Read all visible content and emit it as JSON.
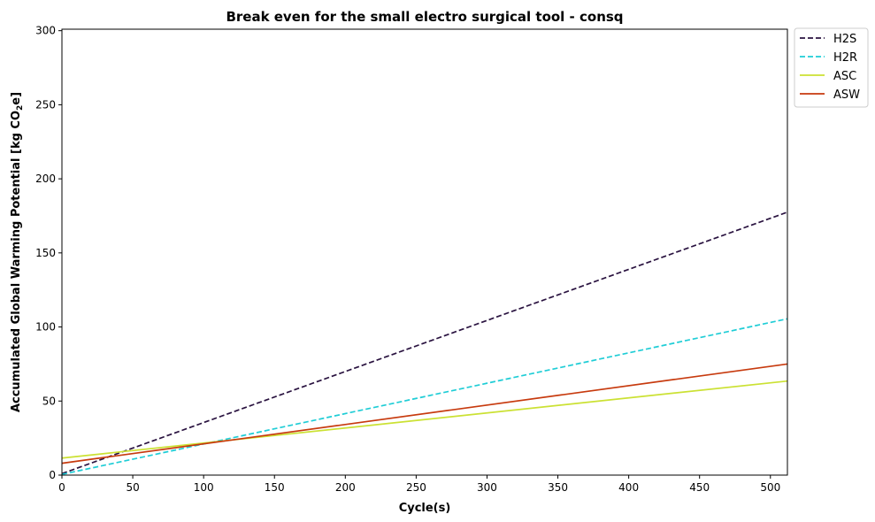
{
  "chart_data": {
    "type": "line",
    "title": "Break even for the small electro surgical tool - consq",
    "xlabel": "Cycle(s)",
    "ylabel": "Accumulated Global Warming Potential [kg CO",
    "ylabel_sub": "2",
    "ylabel_end": "e]",
    "xlim": [
      0,
      512
    ],
    "ylim": [
      0,
      301
    ],
    "xticks": [
      0,
      50,
      100,
      150,
      200,
      250,
      300,
      350,
      400,
      450,
      500
    ],
    "yticks": [
      0,
      50,
      100,
      150,
      200,
      250,
      300
    ],
    "legend_position": "outside-top-right",
    "series": [
      {
        "name": "H2S",
        "color": "#2a1340",
        "dash": "dashed",
        "x": [
          0,
          512
        ],
        "y": [
          1,
          177.5
        ]
      },
      {
        "name": "H2R",
        "color": "#1fcdd6",
        "dash": "dashed",
        "x": [
          0,
          512
        ],
        "y": [
          0.5,
          105.5
        ]
      },
      {
        "name": "ASC",
        "color": "#cbe133",
        "dash": "solid",
        "x": [
          0,
          512
        ],
        "y": [
          11.5,
          63.5
        ]
      },
      {
        "name": "ASW",
        "color": "#c73a0e",
        "dash": "solid",
        "x": [
          0,
          512
        ],
        "y": [
          8,
          75
        ]
      }
    ]
  }
}
